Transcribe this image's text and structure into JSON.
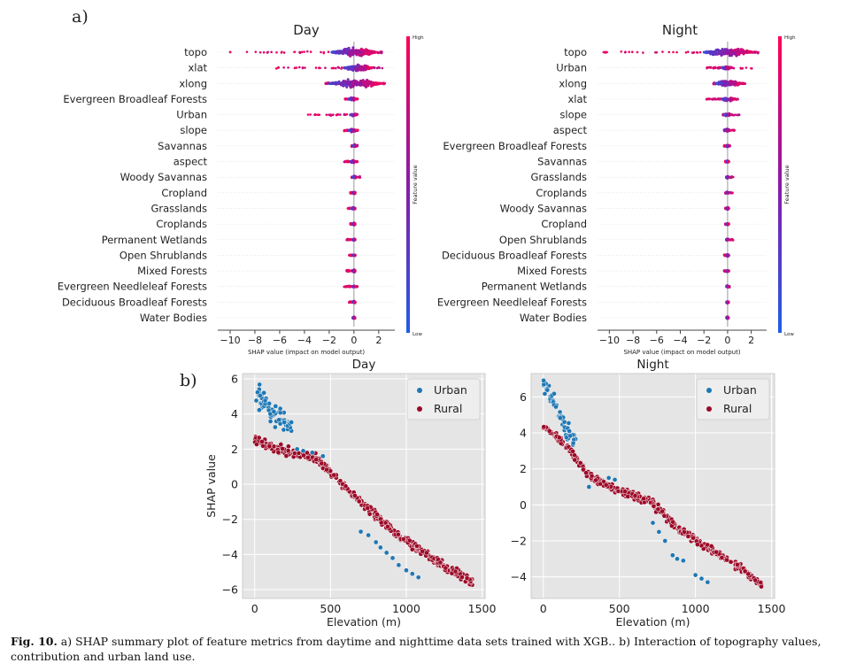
{
  "figure": {
    "label_a": "a)",
    "label_b": "b)",
    "caption_label": "Fig. 10.",
    "caption_text": " a) SHAP summary plot of feature metrics from daytime and nighttime data sets trained with XGB.. b) Interaction of topography values, contribution and urban land use."
  },
  "colors": {
    "low": "#1f5ee6",
    "high": "#ff0052",
    "mid": "#8a1aa8",
    "urban": "#1f77b4",
    "rural": "#9b0a27",
    "panel_bg": "#e5e5e5"
  },
  "chart_data": [
    {
      "id": "summary-day",
      "type": "scatter",
      "subtype": "shap-beeswarm",
      "title": "Day",
      "xlabel": "SHAP value (impact on model output)",
      "xlim": [
        -11,
        3.3
      ],
      "xticks": [
        -10,
        -8,
        -6,
        -4,
        -2,
        0,
        2
      ],
      "xtick_labels": [
        "−10",
        "−8",
        "−6",
        "−4",
        "−2",
        "0",
        "2"
      ],
      "colorbar": {
        "label": "Feature value",
        "high": "High",
        "low": "Low"
      },
      "features": [
        {
          "name": "topo",
          "min": -10.0,
          "max": 2.3,
          "dense": [
            -1.8,
            1.8
          ]
        },
        {
          "name": "xlat",
          "min": -6.3,
          "max": 2.3,
          "dense": [
            -0.8,
            1.5
          ]
        },
        {
          "name": "xlong",
          "min": -2.3,
          "max": 2.5,
          "dense": [
            -2.0,
            2.2
          ]
        },
        {
          "name": "Evergreen Broadleaf Forests",
          "min": -0.8,
          "max": 0.3,
          "dense": [
            -0.4,
            0.2
          ]
        },
        {
          "name": "Urban",
          "min": -3.8,
          "max": 0.3,
          "dense": [
            -0.3,
            0.2
          ]
        },
        {
          "name": "slope",
          "min": -0.8,
          "max": 0.3,
          "dense": [
            -0.4,
            0.3
          ]
        },
        {
          "name": "Savannas",
          "min": -0.2,
          "max": 0.3,
          "dense": [
            -0.1,
            0.2
          ]
        },
        {
          "name": "aspect",
          "min": -0.8,
          "max": 0.3,
          "dense": [
            -0.3,
            0.2
          ]
        },
        {
          "name": "Woody Savannas",
          "min": -0.2,
          "max": 0.5,
          "dense": [
            -0.1,
            0.2
          ]
        },
        {
          "name": "Cropland",
          "min": -0.3,
          "max": 0.1,
          "dense": [
            -0.1,
            0.1
          ]
        },
        {
          "name": "Grasslands",
          "min": -0.5,
          "max": 0.1,
          "dense": [
            -0.2,
            0.1
          ]
        },
        {
          "name": "Croplands",
          "min": -0.3,
          "max": 0.1,
          "dense": [
            -0.1,
            0.1
          ]
        },
        {
          "name": "Permanent Wetlands",
          "min": -0.6,
          "max": 0.1,
          "dense": [
            -0.1,
            0.1
          ]
        },
        {
          "name": "Open Shrublands",
          "min": -0.4,
          "max": 0.1,
          "dense": [
            -0.1,
            0.1
          ]
        },
        {
          "name": "Mixed Forests",
          "min": -0.6,
          "max": 0.1,
          "dense": [
            -0.1,
            0.1
          ]
        },
        {
          "name": "Evergreen Needleleaf Forests",
          "min": -0.8,
          "max": 0.4,
          "dense": [
            -0.1,
            0.1
          ]
        },
        {
          "name": "Deciduous Broadleaf Forests",
          "min": -0.4,
          "max": 0.1,
          "dense": [
            -0.1,
            0.1
          ]
        },
        {
          "name": "Water Bodies",
          "min": -0.1,
          "max": 0.1,
          "dense": [
            -0.05,
            0.05
          ]
        }
      ]
    },
    {
      "id": "summary-night",
      "type": "scatter",
      "subtype": "shap-beeswarm",
      "title": "Night",
      "xlabel": "SHAP value (impact on model output)",
      "xlim": [
        -11,
        3.3
      ],
      "xticks": [
        -10,
        -8,
        -6,
        -4,
        -2,
        0,
        2
      ],
      "xtick_labels": [
        "−10",
        "−8",
        "−6",
        "−4",
        "−2",
        "0",
        "2"
      ],
      "colorbar": {
        "label": "Feature value",
        "high": "High",
        "low": "Low"
      },
      "features": [
        {
          "name": "topo",
          "min": -10.5,
          "max": 2.8,
          "dense": [
            -2.0,
            2.2
          ]
        },
        {
          "name": "Urban",
          "min": -1.8,
          "max": 2.1,
          "dense": [
            -0.5,
            0.3
          ]
        },
        {
          "name": "xlong",
          "min": -1.2,
          "max": 1.5,
          "dense": [
            -1.0,
            1.2
          ]
        },
        {
          "name": "xlat",
          "min": -1.8,
          "max": 0.9,
          "dense": [
            -0.5,
            0.6
          ]
        },
        {
          "name": "slope",
          "min": -0.4,
          "max": 1.0,
          "dense": [
            -0.3,
            0.3
          ]
        },
        {
          "name": "aspect",
          "min": -0.2,
          "max": 0.6,
          "dense": [
            -0.3,
            0.2
          ]
        },
        {
          "name": "Evergreen Broadleaf Forests",
          "min": -0.3,
          "max": 0.2,
          "dense": [
            -0.1,
            0.1
          ]
        },
        {
          "name": "Savannas",
          "min": -0.2,
          "max": 0.1,
          "dense": [
            -0.1,
            0.1
          ]
        },
        {
          "name": "Grasslands",
          "min": -0.1,
          "max": 0.5,
          "dense": [
            -0.1,
            0.1
          ]
        },
        {
          "name": "Croplands",
          "min": -0.2,
          "max": 0.5,
          "dense": [
            -0.1,
            0.1
          ]
        },
        {
          "name": "Woody Savannas",
          "min": -0.2,
          "max": 0.1,
          "dense": [
            -0.1,
            0.1
          ]
        },
        {
          "name": "Cropland",
          "min": -0.2,
          "max": 0.1,
          "dense": [
            -0.1,
            0.1
          ]
        },
        {
          "name": "Open Shrublands",
          "min": -0.1,
          "max": 0.5,
          "dense": [
            -0.1,
            0.1
          ]
        },
        {
          "name": "Deciduous Broadleaf Forests",
          "min": -0.3,
          "max": 0.1,
          "dense": [
            -0.1,
            0.1
          ]
        },
        {
          "name": "Mixed Forests",
          "min": -0.3,
          "max": 0.1,
          "dense": [
            -0.1,
            0.1
          ]
        },
        {
          "name": "Permanent Wetlands",
          "min": -0.1,
          "max": 0.2,
          "dense": [
            -0.05,
            0.05
          ]
        },
        {
          "name": "Evergreen Needleleaf Forests",
          "min": -0.1,
          "max": 0.1,
          "dense": [
            -0.05,
            0.05
          ]
        },
        {
          "name": "Water Bodies",
          "min": -0.1,
          "max": 0.1,
          "dense": [
            -0.05,
            0.05
          ]
        }
      ]
    },
    {
      "id": "dependence-day",
      "type": "scatter",
      "title": "Day",
      "xlabel": "Elevation (m)",
      "ylabel": "SHAP value",
      "xlim": [
        -80,
        1520
      ],
      "ylim": [
        -6.5,
        6.3
      ],
      "xticks": [
        0,
        500,
        1000,
        1500
      ],
      "yticks": [
        -6,
        -4,
        -2,
        0,
        2,
        4,
        6
      ],
      "ytick_labels": [
        "−6",
        "−4",
        "−2",
        "0",
        "2",
        "4",
        "6"
      ],
      "grid": true,
      "legend": {
        "position": "top-right",
        "entries": [
          "Urban",
          "Rural"
        ]
      },
      "series": [
        {
          "name": "Rural",
          "trend": [
            [
              0,
              2.6
            ],
            [
              150,
              2.0
            ],
            [
              400,
              1.5
            ],
            [
              600,
              -0.2
            ],
            [
              800,
              -1.8
            ],
            [
              1000,
              -3.2
            ],
            [
              1200,
              -4.4
            ],
            [
              1440,
              -5.6
            ]
          ],
          "spread": 0.35
        },
        {
          "name": "Urban",
          "trend": [
            [
              0,
              5.2
            ],
            [
              60,
              4.7
            ],
            [
              150,
              3.8
            ],
            [
              250,
              3.2
            ]
          ],
          "spread": 0.45,
          "points": [
            [
              280,
              2.0
            ],
            [
              320,
              1.9
            ],
            [
              380,
              1.8
            ],
            [
              450,
              1.6
            ],
            [
              700,
              -2.7
            ],
            [
              750,
              -2.9
            ],
            [
              800,
              -3.3
            ],
            [
              830,
              -3.6
            ],
            [
              870,
              -3.9
            ],
            [
              910,
              -4.2
            ],
            [
              950,
              -4.6
            ],
            [
              1000,
              -4.9
            ],
            [
              1040,
              -5.1
            ],
            [
              1080,
              -5.3
            ]
          ]
        }
      ]
    },
    {
      "id": "dependence-night",
      "type": "scatter",
      "title": "Night",
      "xlabel": "Elevation (m)",
      "ylabel": "",
      "xlim": [
        -80,
        1520
      ],
      "ylim": [
        -5.2,
        7.3
      ],
      "xticks": [
        0,
        500,
        1000,
        1500
      ],
      "yticks": [
        -4,
        -2,
        0,
        2,
        4,
        6
      ],
      "ytick_labels": [
        "−4",
        "−2",
        "0",
        "2",
        "4",
        "6"
      ],
      "grid": true,
      "legend": {
        "position": "top-right",
        "entries": [
          "Urban",
          "Rural"
        ]
      },
      "series": [
        {
          "name": "Rural",
          "trend": [
            [
              0,
              4.4
            ],
            [
              150,
              3.3
            ],
            [
              300,
              1.6
            ],
            [
              500,
              0.8
            ],
            [
              700,
              0.2
            ],
            [
              900,
              -1.4
            ],
            [
              1100,
              -2.5
            ],
            [
              1300,
              -3.5
            ],
            [
              1440,
              -4.5
            ]
          ],
          "spread": 0.3
        },
        {
          "name": "Urban",
          "trend": [
            [
              0,
              6.8
            ],
            [
              60,
              6.0
            ],
            [
              150,
              4.2
            ],
            [
              220,
              3.5
            ]
          ],
          "spread": 0.4,
          "points": [
            [
              300,
              1.0
            ],
            [
              430,
              1.5
            ],
            [
              470,
              1.4
            ],
            [
              720,
              -1.0
            ],
            [
              760,
              -1.5
            ],
            [
              800,
              -2.0
            ],
            [
              850,
              -2.8
            ],
            [
              880,
              -3.0
            ],
            [
              920,
              -3.1
            ],
            [
              1000,
              -3.9
            ],
            [
              1040,
              -4.1
            ],
            [
              1080,
              -4.3
            ]
          ]
        }
      ]
    }
  ]
}
